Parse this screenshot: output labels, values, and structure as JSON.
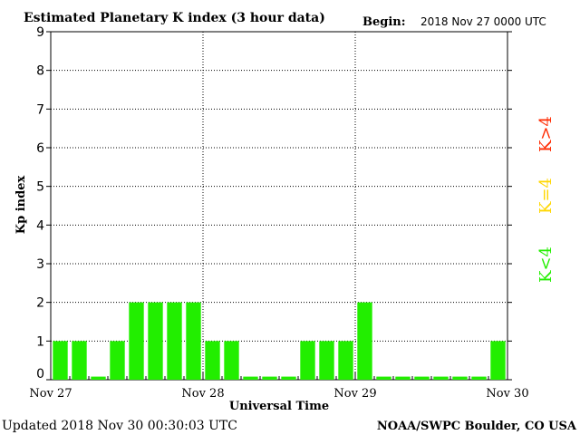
{
  "header": {
    "title": "Estimated Planetary K index (3 hour data)",
    "begin_label": "Begin:",
    "begin_value": "2018 Nov 27 0000 UTC"
  },
  "footer": {
    "updated": "Updated 2018 Nov 30 00:30:03 UTC",
    "credit": "NOAA/SWPC Boulder, CO USA"
  },
  "legend": {
    "items": [
      {
        "label": "K>4",
        "color": "#ff2a00"
      },
      {
        "label": "K=4",
        "color": "#ffd700"
      },
      {
        "label": "K<4",
        "color": "#22ee00"
      }
    ]
  },
  "chart_data": {
    "type": "bar",
    "title": "Estimated Planetary K index (3 hour data)",
    "xlabel": "Universal Time",
    "ylabel": "Kp index",
    "ylim": [
      0,
      9
    ],
    "yticks": [
      0,
      1,
      2,
      3,
      4,
      5,
      6,
      7,
      8,
      9
    ],
    "xticks": [
      "Nov 27",
      "Nov 28",
      "Nov 29",
      "Nov 30"
    ],
    "grid": true,
    "bar_color": "#22ee00",
    "values": [
      1,
      1,
      0,
      1,
      2,
      2,
      2,
      2,
      1,
      1,
      0,
      0,
      0,
      1,
      1,
      1,
      2,
      0,
      0,
      0,
      0,
      0,
      0,
      1
    ]
  }
}
